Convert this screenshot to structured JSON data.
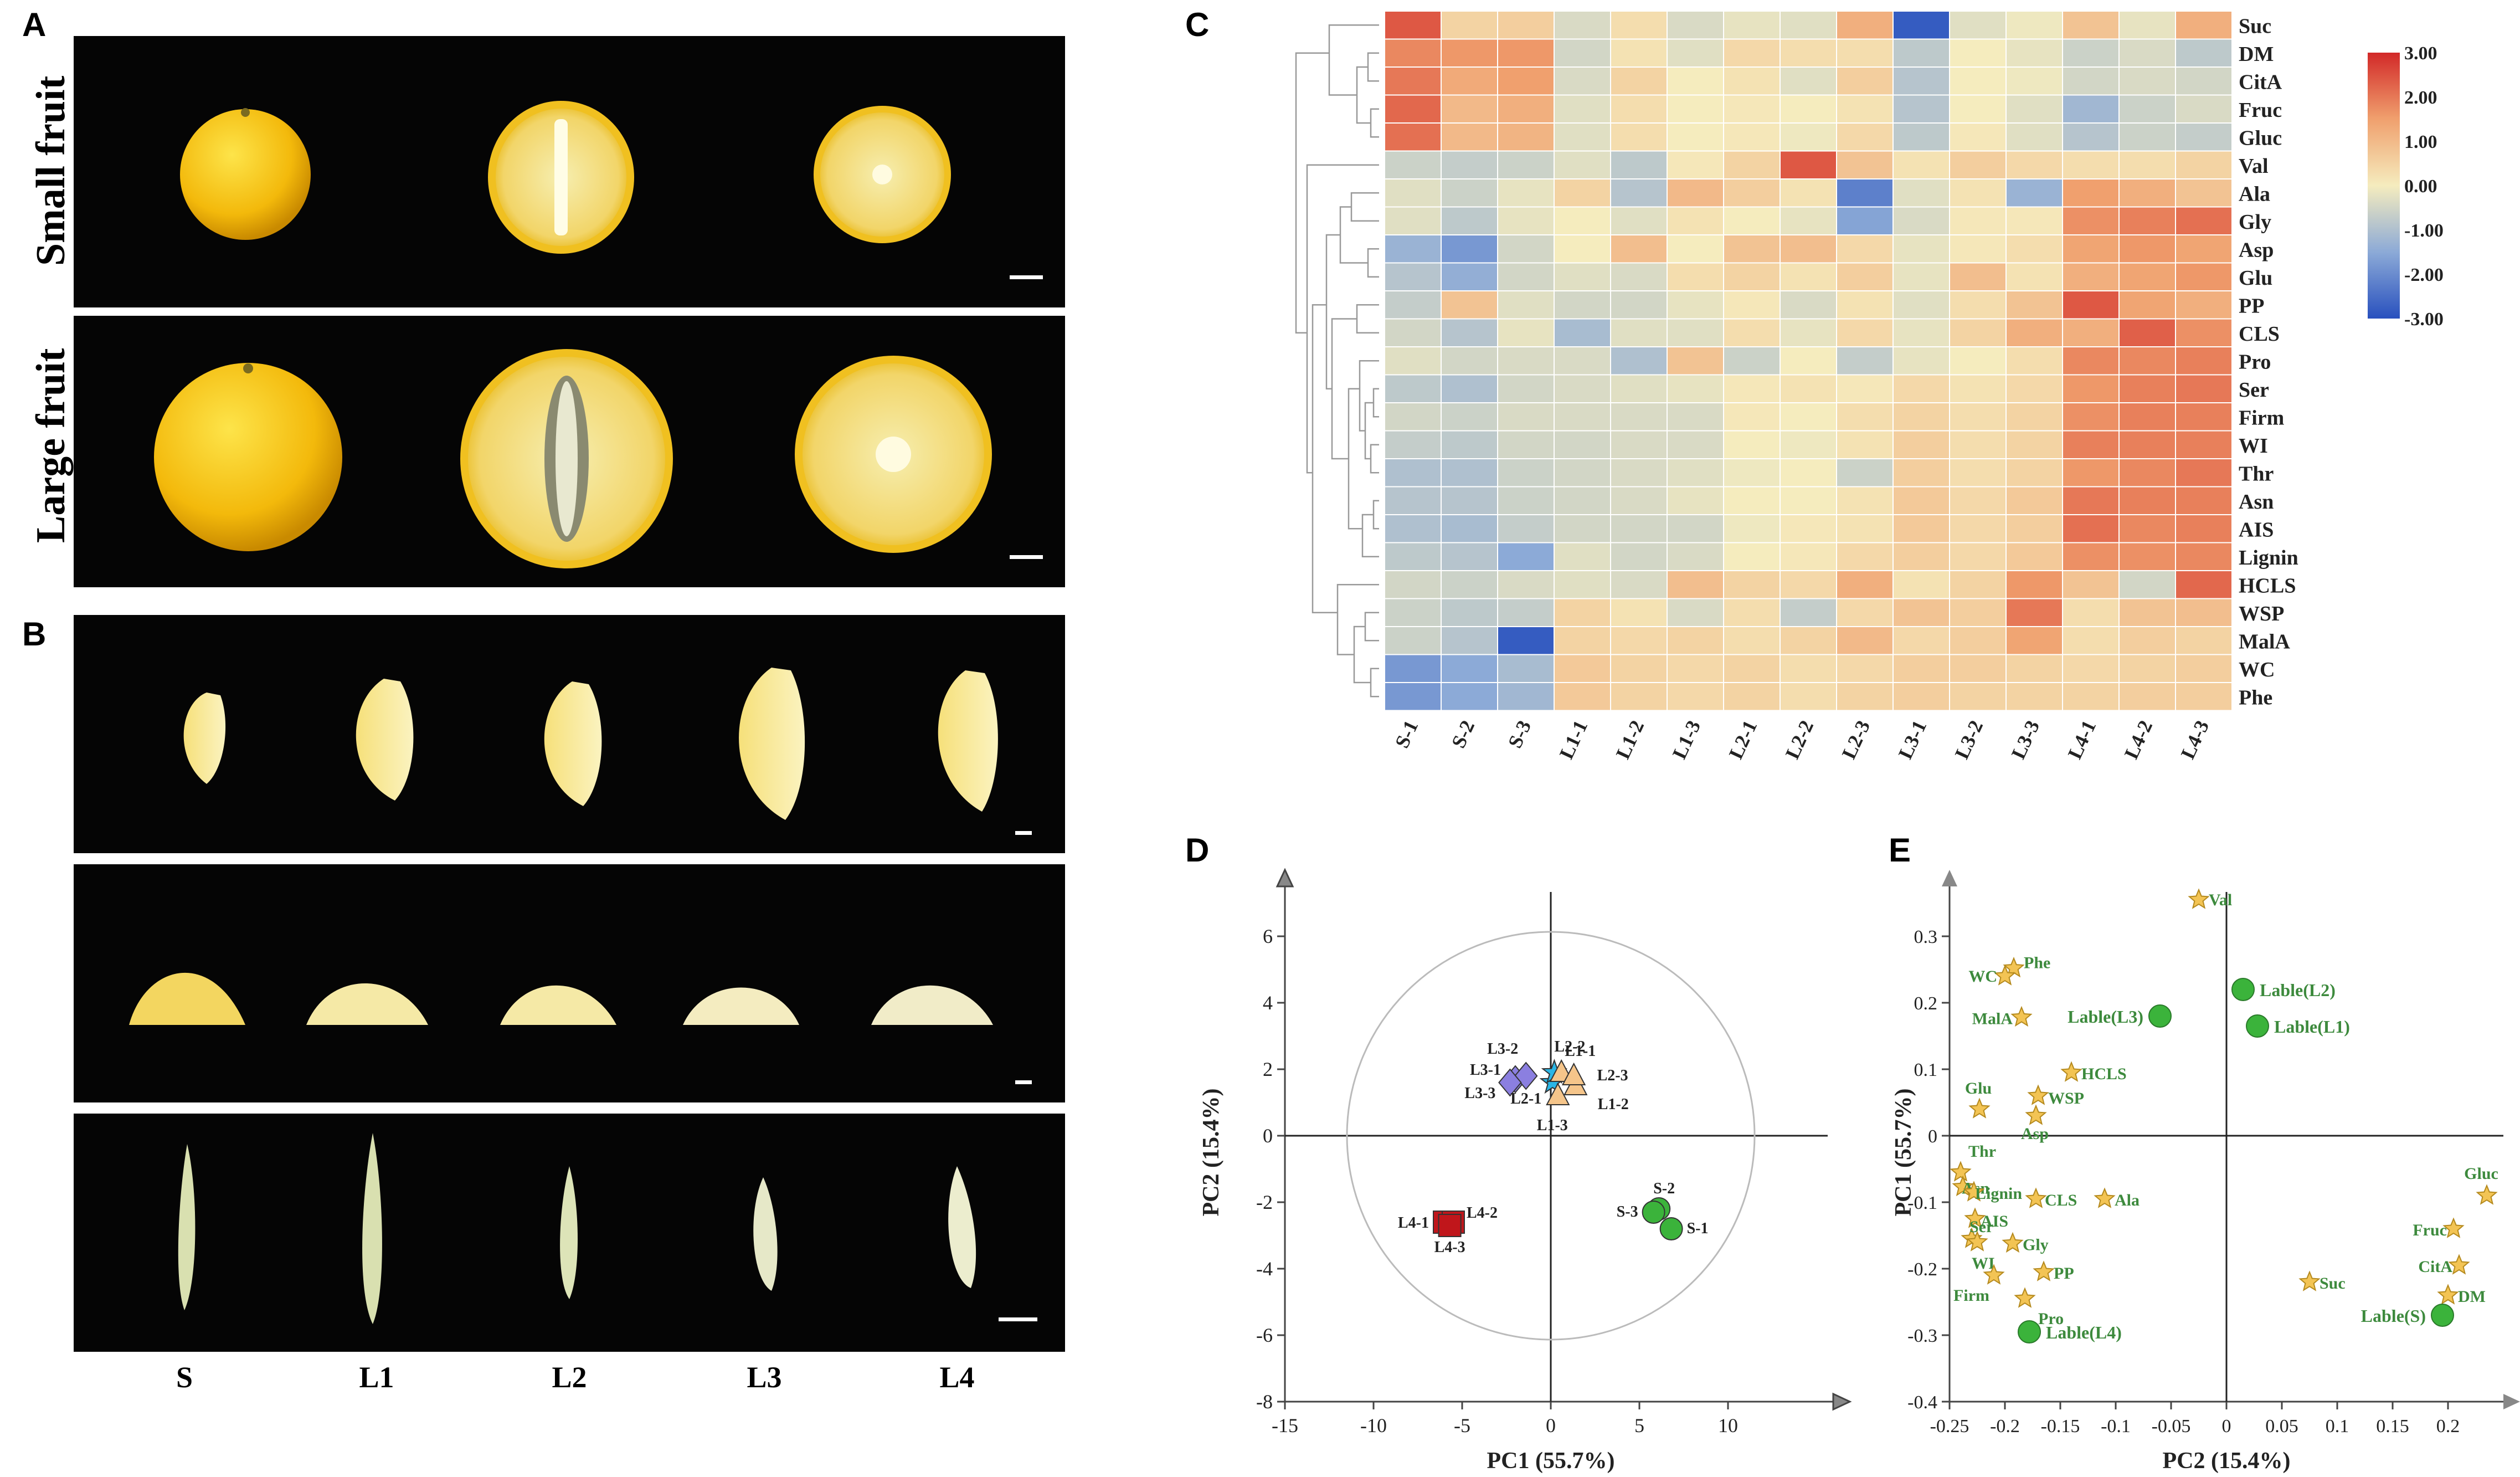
{
  "panels": {
    "A": "A",
    "B": "B",
    "C": "C",
    "D": "D",
    "E": "E"
  },
  "panelA": {
    "rows": [
      "Small fruit",
      "Large fruit"
    ]
  },
  "panelB": {
    "stages": [
      "S",
      "L1",
      "L2",
      "L3",
      "L4"
    ]
  },
  "heatmap": {
    "columns": [
      "S-1",
      "S-2",
      "S-3",
      "L1-1",
      "L1-2",
      "L1-3",
      "L2-1",
      "L2-2",
      "L2-3",
      "L3-1",
      "L3-2",
      "L3-3",
      "L4-1",
      "L4-2",
      "L4-3"
    ],
    "rows": [
      "Suc",
      "DM",
      "CitA",
      "Fruc",
      "Gluc",
      "Val",
      "Ala",
      "Gly",
      "Asp",
      "Glu",
      "PP",
      "CLS",
      "Pro",
      "Ser",
      "Firm",
      "WI",
      "Thr",
      "Asn",
      "AIS",
      "Lignin",
      "HCLS",
      "WSP",
      "MalA",
      "WC",
      "Phe"
    ],
    "values": [
      [
        2.4,
        0.5,
        0.6,
        -0.4,
        0.3,
        -0.4,
        -0.2,
        -0.3,
        1.2,
        -2.8,
        -0.3,
        -0.1,
        0.8,
        -0.2,
        1.2
      ],
      [
        1.8,
        1.6,
        1.6,
        -0.5,
        0.2,
        -0.3,
        0.4,
        0.3,
        0.3,
        -0.8,
        0,
        -0.2,
        -0.6,
        -0.4,
        -0.8
      ],
      [
        2,
        1.3,
        1.5,
        -0.4,
        0.5,
        0,
        0.2,
        -0.3,
        0.6,
        -0.9,
        0,
        -0.1,
        -0.5,
        -0.4,
        -0.5
      ],
      [
        2.2,
        1,
        1.2,
        -0.3,
        0.3,
        0,
        0.1,
        0,
        0.2,
        -0.9,
        0,
        -0.3,
        -1.2,
        -0.6,
        -0.4
      ],
      [
        2.1,
        1,
        1.1,
        -0.3,
        0.3,
        0,
        0.1,
        -0.1,
        0.4,
        -0.8,
        0.1,
        -0.3,
        -0.9,
        -0.6,
        -0.7
      ],
      [
        -0.6,
        -0.7,
        -0.6,
        -0.3,
        -0.8,
        0.1,
        0.5,
        2.4,
        0.8,
        0.2,
        0.6,
        0.4,
        0.3,
        0.3,
        0.5
      ],
      [
        -0.3,
        -0.6,
        -0.2,
        0.5,
        -0.9,
        1,
        0.6,
        0.2,
        -2.2,
        -0.3,
        0.2,
        -1.3,
        1.5,
        1.2,
        0.8
      ],
      [
        -0.3,
        -0.8,
        -0.2,
        0,
        -0.3,
        0.2,
        0,
        -0.2,
        -1.6,
        -0.4,
        0.1,
        0.1,
        1.7,
        1.9,
        2.1
      ],
      [
        -1.3,
        -1.8,
        -0.5,
        0,
        0.9,
        0,
        0.8,
        0.9,
        0.4,
        -0.2,
        0.1,
        0.3,
        1.4,
        1.6,
        1.4
      ],
      [
        -0.9,
        -1.4,
        -0.5,
        -0.3,
        -0.4,
        0.3,
        0.5,
        0.2,
        0.6,
        -0.2,
        0.9,
        0.2,
        1.2,
        1.4,
        1.6
      ],
      [
        -0.7,
        0.8,
        -0.3,
        -0.5,
        -0.5,
        -0.2,
        0.1,
        -0.4,
        0.2,
        -0.3,
        0.3,
        0.8,
        2.4,
        1.4,
        1.2
      ],
      [
        -0.5,
        -0.9,
        -0.2,
        -1.1,
        -0.3,
        -0.3,
        0.3,
        -0.2,
        0.4,
        -0.2,
        0.5,
        1.2,
        1.2,
        2.3,
        1.7
      ],
      [
        -0.3,
        -0.5,
        -0.4,
        -0.4,
        -1,
        0.8,
        -0.6,
        0,
        -0.7,
        -0.2,
        0,
        0.3,
        1.8,
        1.8,
        1.9
      ],
      [
        -0.8,
        -1,
        -0.5,
        -0.4,
        -0.3,
        -0.2,
        0.1,
        0.2,
        0.1,
        0.4,
        0.2,
        0.4,
        1.6,
        1.9,
        2
      ],
      [
        -0.5,
        -0.6,
        -0.4,
        -0.4,
        -0.4,
        -0.4,
        0.1,
        0,
        0.3,
        0.5,
        0.3,
        0.5,
        1.7,
        1.9,
        1.9
      ],
      [
        -0.7,
        -0.8,
        -0.5,
        -0.5,
        -0.4,
        -0.4,
        0,
        -0.1,
        0.2,
        0.6,
        0.3,
        0.5,
        1.9,
        1.9,
        1.9
      ],
      [
        -1,
        -1,
        -0.6,
        -0.5,
        -0.4,
        -0.3,
        -0.1,
        0,
        -0.6,
        0.6,
        0.3,
        0.5,
        1.6,
        1.8,
        2
      ],
      [
        -0.9,
        -0.9,
        -0.6,
        -0.5,
        -0.4,
        -0.2,
        0,
        0,
        0.2,
        0.7,
        0.4,
        0.7,
        2,
        1.9,
        1.9
      ],
      [
        -1,
        -1.1,
        -0.7,
        -0.5,
        -0.5,
        -0.5,
        -0.1,
        0.1,
        0.2,
        0.7,
        0.4,
        0.6,
        2.1,
        1.8,
        1.9
      ],
      [
        -0.8,
        -0.9,
        -1.5,
        -0.3,
        -0.5,
        -0.4,
        0,
        0.1,
        0.4,
        0.6,
        0.4,
        0.7,
        1.7,
        1.7,
        1.8
      ],
      [
        -0.5,
        -0.6,
        -0.4,
        -0.3,
        -0.4,
        0.9,
        0.5,
        0.4,
        1.2,
        0.2,
        0.5,
        1.6,
        0.8,
        -0.5,
        2.2
      ],
      [
        -0.6,
        -0.8,
        -0.7,
        0.5,
        0.2,
        -0.4,
        0.3,
        -0.7,
        0.4,
        0.8,
        0.6,
        2,
        0.3,
        0.8,
        0.9
      ],
      [
        -0.6,
        -0.9,
        -2.8,
        0.5,
        0.4,
        0.5,
        0.3,
        0.5,
        1,
        0.4,
        0.6,
        1.4,
        0.3,
        0.6,
        0.5
      ],
      [
        -1.8,
        -1.5,
        -1.1,
        0.7,
        0.5,
        0.4,
        0.5,
        0.3,
        0.4,
        0.6,
        0.6,
        0.5,
        0.4,
        0.5,
        0.6
      ],
      [
        -1.8,
        -1.5,
        -1.2,
        0.7,
        0.5,
        0.4,
        0.5,
        0.3,
        0.5,
        0.6,
        0.5,
        0.5,
        0.5,
        0.6,
        0.6
      ]
    ],
    "legend_ticks": [
      "3.00",
      "2.00",
      "1.00",
      "0.00",
      "-1.00",
      "-2.00",
      "-3.00"
    ]
  },
  "chart_data": [
    {
      "type": "heatmap",
      "title": "",
      "xlabel": "",
      "ylabel": "",
      "color_range": [
        -3,
        3
      ],
      "note": "values in panel heatmap.values (rows x columns)"
    },
    {
      "type": "scatter",
      "xlabel": "PC1 (55.7%)",
      "ylabel": "PC2 (15.4%)",
      "xlim": [
        -15,
        15
      ],
      "ylim": [
        -8,
        7
      ],
      "xticks": [
        "-15",
        "-10",
        "-5",
        "0",
        "5",
        "10"
      ],
      "yticks": [
        "-8",
        "-6",
        "-4",
        "-2",
        "0",
        "2",
        "4",
        "6"
      ],
      "points": [
        {
          "label": "S-1",
          "x": 6.8,
          "y": -2.8,
          "color": "#3bb33b",
          "shape": "circle"
        },
        {
          "label": "S-2",
          "x": 6.1,
          "y": -2.2,
          "color": "#3bb33b",
          "shape": "circle"
        },
        {
          "label": "S-3",
          "x": 5.8,
          "y": -2.3,
          "color": "#3bb33b",
          "shape": "circle"
        },
        {
          "label": "L4-1",
          "x": -6,
          "y": -2.6,
          "color": "#c0161b",
          "shape": "square"
        },
        {
          "label": "L4-2",
          "x": -5.5,
          "y": -2.6,
          "color": "#c0161b",
          "shape": "square"
        },
        {
          "label": "L4-3",
          "x": -5.7,
          "y": -2.7,
          "color": "#c0161b",
          "shape": "square"
        },
        {
          "label": "L3-1",
          "x": -2,
          "y": 1.7,
          "color": "#8b7fe0",
          "shape": "diamond"
        },
        {
          "label": "L3-2",
          "x": -1.4,
          "y": 1.8,
          "color": "#8b7fe0",
          "shape": "diamond"
        },
        {
          "label": "L3-3",
          "x": -2.3,
          "y": 1.6,
          "color": "#8b7fe0",
          "shape": "diamond"
        },
        {
          "label": "L2-1",
          "x": 0.1,
          "y": 1.6,
          "color": "#2ab6e6",
          "shape": "star"
        },
        {
          "label": "L2-2",
          "x": 0.2,
          "y": 1.9,
          "color": "#2ab6e6",
          "shape": "star"
        },
        {
          "label": "L1-1",
          "x": 0.6,
          "y": 1.9,
          "color": "#f5c58a",
          "shape": "triangle"
        },
        {
          "label": "L1-2",
          "x": 1.4,
          "y": 1.5,
          "color": "#f5c58a",
          "shape": "triangle"
        },
        {
          "label": "L1-3",
          "x": 0.4,
          "y": 1.2,
          "color": "#f5c58a",
          "shape": "triangle"
        },
        {
          "label": "L2-3",
          "x": 1.3,
          "y": 1.8,
          "color": "#f5c58a",
          "shape": "triangle"
        }
      ],
      "circle_radius": 11.5
    },
    {
      "type": "scatter",
      "xlabel": "PC2 (15.4%)",
      "ylabel": "PC1 (55.7%)",
      "xlim": [
        -0.25,
        0.25
      ],
      "ylim": [
        -0.4,
        0.35
      ],
      "xticks": [
        "-0.25",
        "-0.2",
        "-0.15",
        "-0.1",
        "-0.05",
        "0",
        "0.05",
        "0.1",
        "0.15",
        "0.2"
      ],
      "yticks": [
        "-0.4",
        "-0.3",
        "-0.2",
        "-0.1",
        "0",
        "0.1",
        "0.2",
        "0.3"
      ],
      "variables": [
        {
          "label": "Val",
          "x": -0.025,
          "y": 0.355
        },
        {
          "label": "Phe",
          "x": -0.192,
          "y": 0.252
        },
        {
          "label": "WC",
          "x": -0.2,
          "y": 0.24
        },
        {
          "label": "MalA",
          "x": -0.185,
          "y": 0.178
        },
        {
          "label": "HCLS",
          "x": -0.14,
          "y": 0.095
        },
        {
          "label": "WSP",
          "x": -0.17,
          "y": 0.06
        },
        {
          "label": "Glu",
          "x": -0.223,
          "y": 0.04
        },
        {
          "label": "Asp",
          "x": -0.172,
          "y": 0.03
        },
        {
          "label": "Thr",
          "x": -0.24,
          "y": -0.055
        },
        {
          "label": "Asn",
          "x": -0.238,
          "y": -0.077
        },
        {
          "label": "Lignin",
          "x": -0.228,
          "y": -0.085
        },
        {
          "label": "CLS",
          "x": -0.172,
          "y": -0.095
        },
        {
          "label": "Ala",
          "x": -0.11,
          "y": -0.095
        },
        {
          "label": "AIS",
          "x": -0.227,
          "y": -0.125
        },
        {
          "label": "Ser",
          "x": -0.23,
          "y": -0.155
        },
        {
          "label": "Gly",
          "x": -0.193,
          "y": -0.162
        },
        {
          "label": "WI",
          "x": -0.225,
          "y": -0.16
        },
        {
          "label": "PP",
          "x": -0.165,
          "y": -0.205
        },
        {
          "label": "Firm",
          "x": -0.21,
          "y": -0.21
        },
        {
          "label": "Pro",
          "x": -0.182,
          "y": -0.245
        },
        {
          "label": "Suc",
          "x": 0.075,
          "y": -0.22
        },
        {
          "label": "Gluc",
          "x": 0.235,
          "y": -0.09
        },
        {
          "label": "Fruc",
          "x": 0.205,
          "y": -0.14
        },
        {
          "label": "CitA",
          "x": 0.21,
          "y": -0.195
        },
        {
          "label": "DM",
          "x": 0.2,
          "y": -0.24
        }
      ],
      "groups": [
        {
          "label": "Lable(L3)",
          "x": -0.06,
          "y": 0.18
        },
        {
          "label": "Lable(L2)",
          "x": 0.015,
          "y": 0.22
        },
        {
          "label": "Lable(L1)",
          "x": 0.028,
          "y": 0.165
        },
        {
          "label": "Lable(L4)",
          "x": -0.178,
          "y": -0.295
        },
        {
          "label": "Lable(S)",
          "x": 0.195,
          "y": -0.27
        }
      ]
    }
  ]
}
